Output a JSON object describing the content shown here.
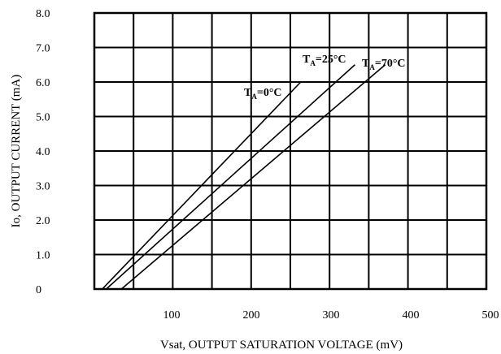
{
  "chart_data": {
    "type": "line",
    "xlabel": "Vsat, OUTPUT SATURATION VOLTAGE (mV)",
    "ylabel": "Io, OUTPUT CURRENT (mA)",
    "xlim": [
      0,
      500
    ],
    "ylim": [
      0,
      8.0
    ],
    "x_ticks": [
      "100",
      "200",
      "300",
      "400",
      "500"
    ],
    "y_ticks": [
      "0",
      "1.0",
      "2.0",
      "3.0",
      "4.0",
      "5.0",
      "6.0",
      "7.0",
      "8.0"
    ],
    "grid": true,
    "series": [
      {
        "name": "TA=0°C",
        "label_main": "T",
        "label_sub": "A",
        "label_rest": "=0°C",
        "x": [
          13,
          262
        ],
        "y": [
          0,
          6.0
        ]
      },
      {
        "name": "TA=25°C",
        "label_main": "T",
        "label_sub": "A",
        "label_rest": "=25°C",
        "x": [
          18,
          330
        ],
        "y": [
          0,
          6.5
        ]
      },
      {
        "name": "TA=70°C",
        "label_main": "T",
        "label_sub": "A",
        "label_rest": "=70°C",
        "x": [
          37,
          368
        ],
        "y": [
          0,
          6.5
        ]
      }
    ]
  }
}
